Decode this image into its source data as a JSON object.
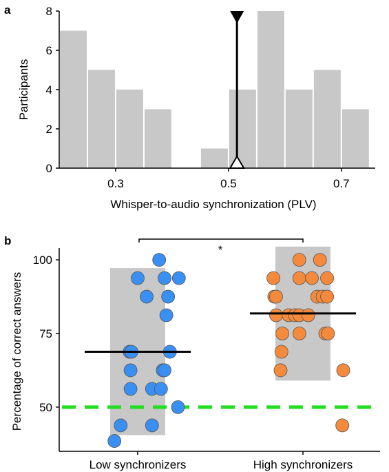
{
  "panel_a": {
    "label": "a",
    "chart_data": {
      "type": "bar",
      "subtype": "histogram",
      "bins": [
        {
          "x0": 0.2,
          "x1": 0.25,
          "count": 7
        },
        {
          "x0": 0.25,
          "x1": 0.3,
          "count": 5
        },
        {
          "x0": 0.3,
          "x1": 0.35,
          "count": 4
        },
        {
          "x0": 0.35,
          "x1": 0.4,
          "count": 3
        },
        {
          "x0": 0.4,
          "x1": 0.45,
          "count": 0
        },
        {
          "x0": 0.45,
          "x1": 0.5,
          "count": 1
        },
        {
          "x0": 0.5,
          "x1": 0.55,
          "count": 4
        },
        {
          "x0": 0.55,
          "x1": 0.6,
          "count": 8
        },
        {
          "x0": 0.6,
          "x1": 0.65,
          "count": 4
        },
        {
          "x0": 0.65,
          "x1": 0.7,
          "count": 5
        },
        {
          "x0": 0.7,
          "x1": 0.75,
          "count": 3
        }
      ],
      "threshold_x": 0.515,
      "xlabel": "Whisper-to-audio synchronization (PLV)",
      "ylabel": "Participants",
      "xticks": [
        0.3,
        0.5,
        0.7
      ],
      "xtick_labels": [
        "0.3",
        "0.5",
        "0.7"
      ],
      "yticks": [
        0,
        2,
        4,
        6,
        8
      ],
      "xlim": [
        0.2,
        0.76
      ],
      "ylim": [
        0,
        8
      ],
      "bar_color": "#c8c8c8"
    }
  },
  "panel_b": {
    "label": "b",
    "chart_data": {
      "type": "scatter",
      "ylabel": "Percentage of correct answers",
      "yticks": [
        50,
        75,
        100
      ],
      "ylim": [
        35,
        104
      ],
      "chance_level": 50,
      "chance_color": "#22dd22",
      "categories": [
        "Low synchronizers",
        "High synchronizers"
      ],
      "significance": "*",
      "series": [
        {
          "group": "Low synchronizers",
          "color": "#3a8ff2",
          "mean": 68.8,
          "box": [
            40.5,
            97.2
          ],
          "points": [
            {
              "jitter": -0.26,
              "y": 38.5
            },
            {
              "jitter": -0.19,
              "y": 43.8
            },
            {
              "jitter": 0.16,
              "y": 43.8
            },
            {
              "jitter": -0.08,
              "y": 56.2
            },
            {
              "jitter": 0.16,
              "y": 56.2
            },
            {
              "jitter": 0.26,
              "y": 56.2
            },
            {
              "jitter": 0.45,
              "y": 50.0
            },
            {
              "jitter": -0.08,
              "y": 62.5
            },
            {
              "jitter": 0.28,
              "y": 62.5
            },
            {
              "jitter": 0.3,
              "y": 62.5
            },
            {
              "jitter": -0.09,
              "y": 68.8
            },
            {
              "jitter": -0.07,
              "y": 68.8
            },
            {
              "jitter": 0.36,
              "y": 68.8
            },
            {
              "jitter": 0.32,
              "y": 81.2
            },
            {
              "jitter": 0.1,
              "y": 87.5
            },
            {
              "jitter": 0.34,
              "y": 87.5
            },
            {
              "jitter": 0.0,
              "y": 93.8
            },
            {
              "jitter": 0.3,
              "y": 93.8
            },
            {
              "jitter": 0.46,
              "y": 93.8
            },
            {
              "jitter": 0.24,
              "y": 100.0
            }
          ]
        },
        {
          "group": "High synchronizers",
          "color": "#f58a3c",
          "mean": 81.8,
          "box": [
            59.0,
            104.5
          ],
          "points": [
            {
              "jitter": -0.25,
              "y": 62.5
            },
            {
              "jitter": 0.45,
              "y": 62.5
            },
            {
              "jitter": -0.24,
              "y": 68.8
            },
            {
              "jitter": -0.23,
              "y": 75.0
            },
            {
              "jitter": -0.04,
              "y": 75.0
            },
            {
              "jitter": 0.25,
              "y": 75.0
            },
            {
              "jitter": 0.28,
              "y": 75.0
            },
            {
              "jitter": -0.3,
              "y": 81.2
            },
            {
              "jitter": -0.16,
              "y": 81.2
            },
            {
              "jitter": -0.09,
              "y": 81.2
            },
            {
              "jitter": -0.04,
              "y": 81.2
            },
            {
              "jitter": 0.06,
              "y": 81.2
            },
            {
              "jitter": -0.32,
              "y": 87.5
            },
            {
              "jitter": -0.3,
              "y": 87.5
            },
            {
              "jitter": 0.16,
              "y": 87.5
            },
            {
              "jitter": 0.22,
              "y": 87.5
            },
            {
              "jitter": 0.27,
              "y": 87.5
            },
            {
              "jitter": -0.33,
              "y": 93.8
            },
            {
              "jitter": -0.04,
              "y": 93.8
            },
            {
              "jitter": 0.1,
              "y": 93.8
            },
            {
              "jitter": 0.27,
              "y": 93.8
            },
            {
              "jitter": -0.04,
              "y": 100.0
            },
            {
              "jitter": 0.19,
              "y": 100.0
            },
            {
              "jitter": 0.44,
              "y": 43.8
            }
          ]
        }
      ]
    }
  }
}
